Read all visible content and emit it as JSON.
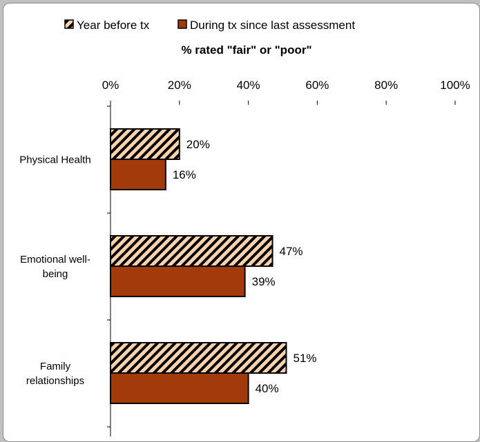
{
  "chart_data": {
    "type": "bar",
    "orientation": "horizontal",
    "title": "% rated \"fair\" or \"poor\"",
    "categories": [
      "Physical Health",
      "Emotional well-being",
      "Family relationships"
    ],
    "category_label_lines": [
      [
        "Physical Health"
      ],
      [
        "Emotional well-",
        "being"
      ],
      [
        "Family",
        "relationships"
      ]
    ],
    "series": [
      {
        "name": "Year before tx",
        "values": [
          20,
          47,
          51
        ],
        "labels": [
          "20%",
          "47%",
          "51%"
        ],
        "fill": "hatched",
        "color": "#fdd3ad"
      },
      {
        "name": "During tx since last assessment",
        "values": [
          16,
          39,
          40
        ],
        "labels": [
          "16%",
          "39%",
          "40%"
        ],
        "fill": "solid",
        "color": "#a23a0b"
      }
    ],
    "xlim": [
      0,
      100
    ],
    "x_ticks": [
      "0%",
      "20%",
      "40%",
      "60%",
      "80%",
      "100%"
    ],
    "x_axis_position": "top",
    "legend": "top",
    "grid": false
  }
}
